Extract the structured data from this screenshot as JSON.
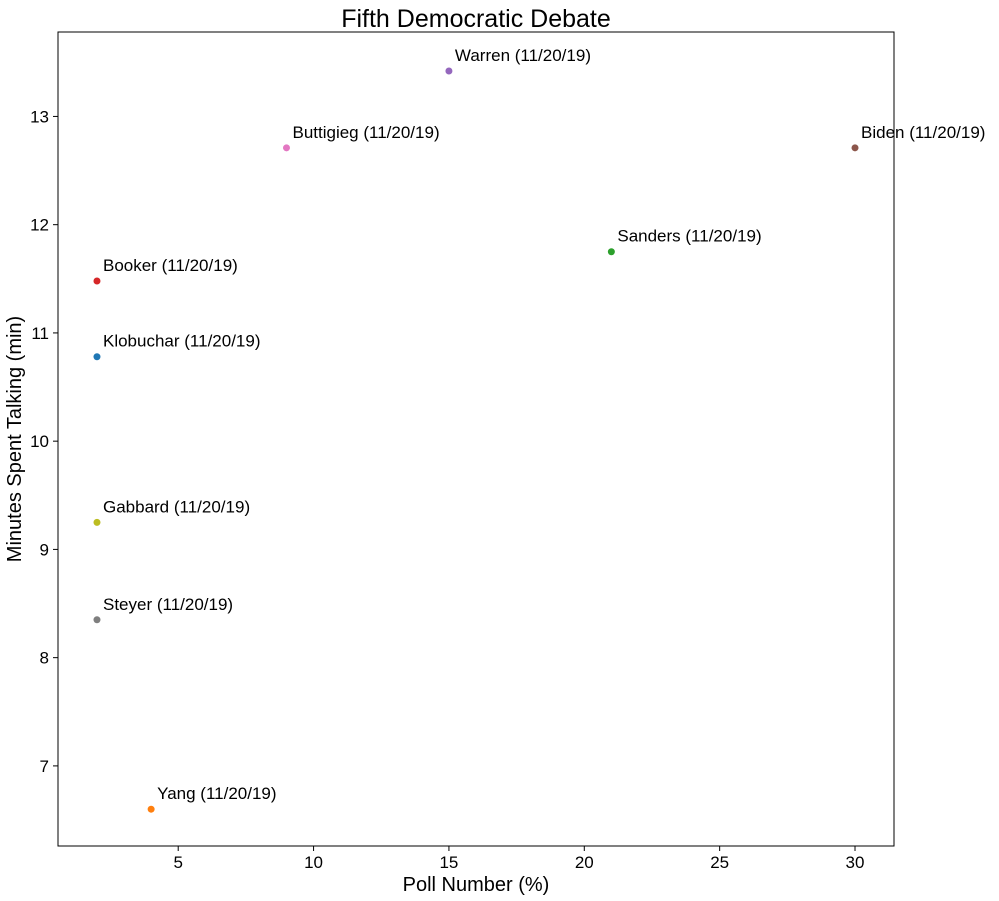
{
  "chart_data": {
    "type": "scatter",
    "title": "Fifth Democratic Debate",
    "xlabel": "Poll Number (%)",
    "ylabel": "Minutes Spent Talking (min)",
    "xlim": [
      0.56,
      31.44
    ],
    "ylim": [
      6.26,
      13.78
    ],
    "xticks": [
      5,
      10,
      15,
      20,
      25,
      30
    ],
    "yticks": [
      7,
      8,
      9,
      10,
      11,
      12,
      13
    ],
    "grid": false,
    "points": [
      {
        "label": "Warren (11/20/19)",
        "x": 15,
        "y": 13.42,
        "color": "#9467bd"
      },
      {
        "label": "Buttigieg (11/20/19)",
        "x": 9,
        "y": 12.71,
        "color": "#e377c2"
      },
      {
        "label": "Biden (11/20/19)",
        "x": 30,
        "y": 12.71,
        "color": "#8c564b"
      },
      {
        "label": "Sanders (11/20/19)",
        "x": 21,
        "y": 11.75,
        "color": "#2ca02c"
      },
      {
        "label": "Booker (11/20/19)",
        "x": 2,
        "y": 11.48,
        "color": "#d62728"
      },
      {
        "label": "Klobuchar (11/20/19)",
        "x": 2,
        "y": 10.78,
        "color": "#1f77b4"
      },
      {
        "label": "Gabbard (11/20/19)",
        "x": 2,
        "y": 9.25,
        "color": "#bcbd22"
      },
      {
        "label": "Steyer (11/20/19)",
        "x": 2,
        "y": 8.35,
        "color": "#7f7f7f"
      },
      {
        "label": "Yang (11/20/19)",
        "x": 4,
        "y": 6.6,
        "color": "#ff7f0e"
      }
    ]
  }
}
